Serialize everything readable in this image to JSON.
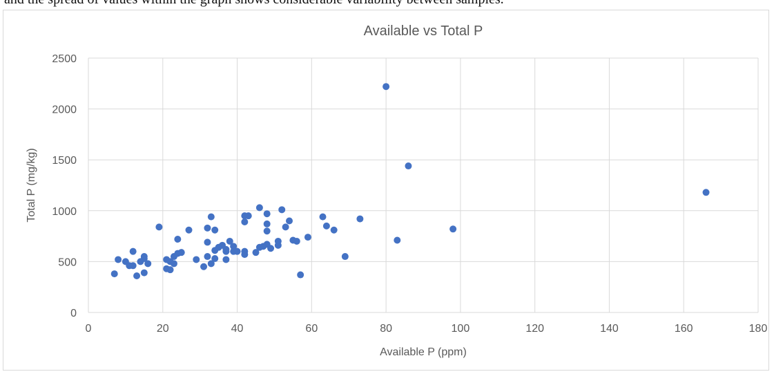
{
  "caption_fragment": "and the spread of values within the graph shows considerable variability between samples.",
  "chart_data": {
    "type": "scatter",
    "title": "Available vs Total P",
    "xlabel": "Available P (ppm)",
    "ylabel": "Total P (mg/kg)",
    "xlim": [
      0,
      180
    ],
    "ylim": [
      0,
      2500
    ],
    "xticks": [
      0,
      20,
      40,
      60,
      80,
      100,
      120,
      140,
      160,
      180
    ],
    "yticks": [
      0,
      500,
      1000,
      1500,
      2000,
      2500
    ],
    "grid": true,
    "legend": "none",
    "marker_color": "#4472c4",
    "points": [
      [
        7,
        380
      ],
      [
        8,
        520
      ],
      [
        10,
        500
      ],
      [
        11,
        460
      ],
      [
        12,
        600
      ],
      [
        12,
        460
      ],
      [
        13,
        360
      ],
      [
        14,
        500
      ],
      [
        15,
        390
      ],
      [
        15,
        530
      ],
      [
        15,
        550
      ],
      [
        16,
        480
      ],
      [
        19,
        840
      ],
      [
        21,
        520
      ],
      [
        21,
        430
      ],
      [
        22,
        420
      ],
      [
        22,
        500
      ],
      [
        23,
        550
      ],
      [
        23,
        480
      ],
      [
        24,
        580
      ],
      [
        24,
        720
      ],
      [
        25,
        590
      ],
      [
        27,
        810
      ],
      [
        29,
        520
      ],
      [
        31,
        450
      ],
      [
        32,
        830
      ],
      [
        32,
        690
      ],
      [
        32,
        550
      ],
      [
        33,
        940
      ],
      [
        33,
        480
      ],
      [
        34,
        610
      ],
      [
        34,
        810
      ],
      [
        34,
        530
      ],
      [
        35,
        640
      ],
      [
        36,
        660
      ],
      [
        37,
        600
      ],
      [
        37,
        520
      ],
      [
        37,
        620
      ],
      [
        38,
        700
      ],
      [
        39,
        600
      ],
      [
        39,
        650
      ],
      [
        40,
        600
      ],
      [
        42,
        950
      ],
      [
        42,
        890
      ],
      [
        42,
        570
      ],
      [
        42,
        600
      ],
      [
        43,
        950
      ],
      [
        45,
        590
      ],
      [
        46,
        1030
      ],
      [
        46,
        640
      ],
      [
        47,
        650
      ],
      [
        48,
        970
      ],
      [
        48,
        870
      ],
      [
        48,
        800
      ],
      [
        48,
        670
      ],
      [
        49,
        630
      ],
      [
        51,
        700
      ],
      [
        51,
        660
      ],
      [
        52,
        1010
      ],
      [
        53,
        840
      ],
      [
        54,
        900
      ],
      [
        55,
        710
      ],
      [
        56,
        700
      ],
      [
        57,
        370
      ],
      [
        59,
        740
      ],
      [
        63,
        940
      ],
      [
        64,
        850
      ],
      [
        66,
        810
      ],
      [
        69,
        550
      ],
      [
        73,
        920
      ],
      [
        80,
        2220
      ],
      [
        83,
        710
      ],
      [
        86,
        1440
      ],
      [
        98,
        820
      ],
      [
        166,
        1180
      ]
    ]
  }
}
